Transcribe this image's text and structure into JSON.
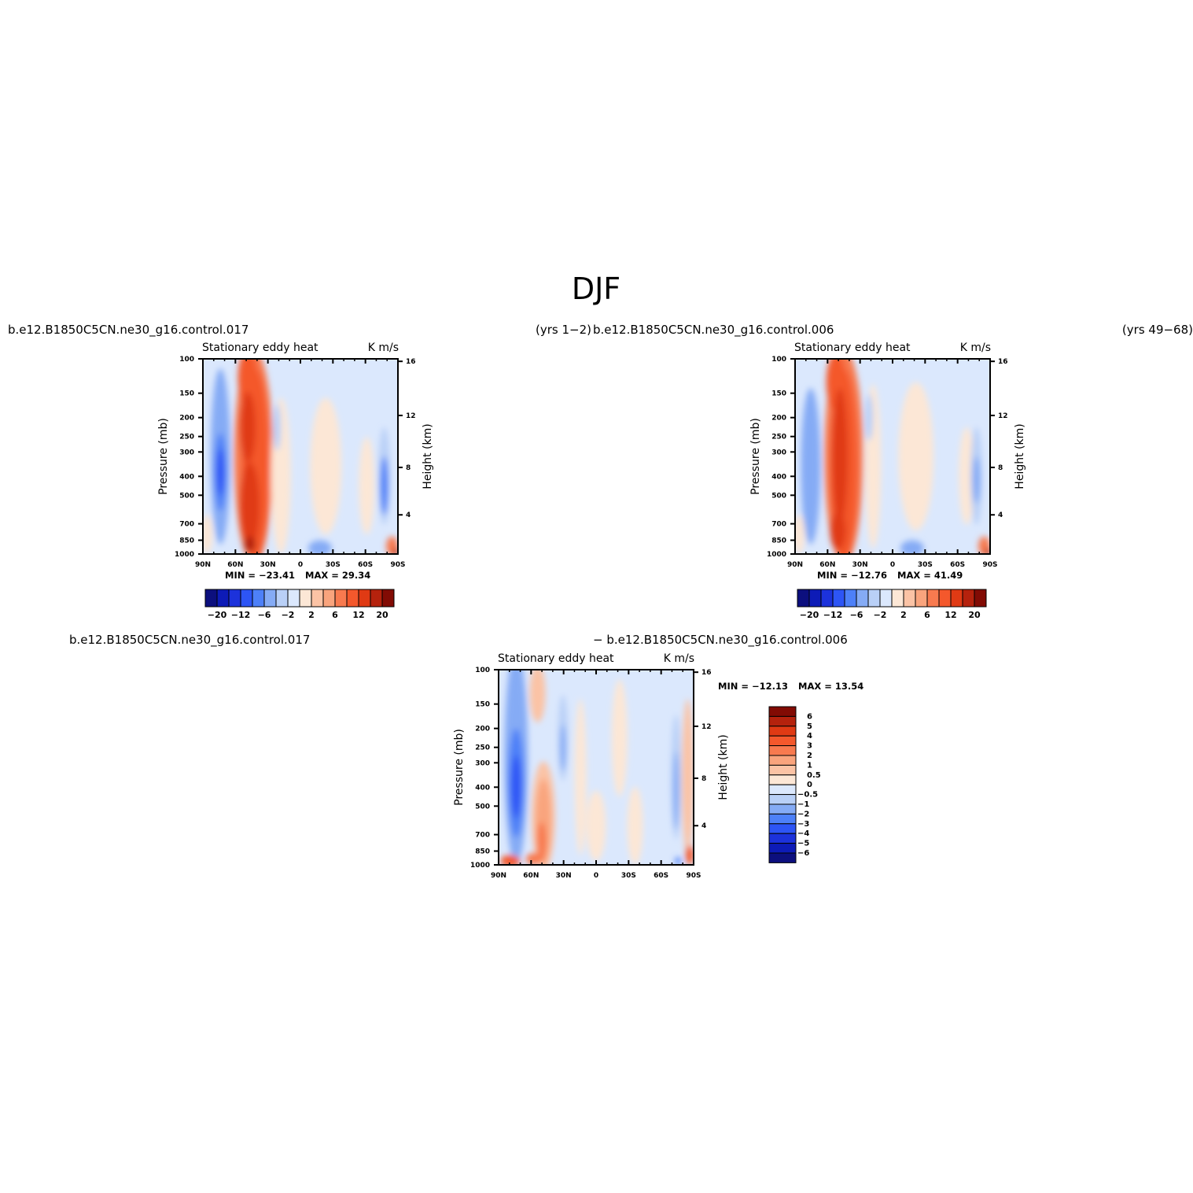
{
  "main_title": "DJF",
  "colors": {
    "levels_diff": [
      "#0c0f7e",
      "#0d1bb7",
      "#1c32db",
      "#2d55f5",
      "#4d80f8",
      "#85abf5",
      "#b9d0f7",
      "#dbe8fd",
      "#fce7d6",
      "#fbc3a5",
      "#f9a47d",
      "#f87a4f",
      "#f4582c",
      "#e03a14",
      "#b5220d",
      "#820b04"
    ]
  },
  "panels": [
    {
      "case_name": "b.e12.B1850C5CN.ne30_g16.control.017",
      "years": "(yrs 1−2)",
      "left_string": "Stationary  eddy  heat",
      "right_string": "K  m/s",
      "min_label": "MIN  =  −23.41",
      "max_label": "MAX  =   29.34",
      "ylabel_left": "Pressure  (mb)",
      "ylabel_right": "Height  (km)",
      "colorbar_labels": [
        "−20",
        "−12",
        "−6",
        "−2",
        "2",
        "6",
        "12",
        "20"
      ]
    },
    {
      "case_name": "b.e12.B1850C5CN.ne30_g16.control.006",
      "years": "(yrs 49−68)",
      "left_string": "Stationary  eddy  heat",
      "right_string": "K  m/s",
      "min_label": "MIN  =  −12.76",
      "max_label": "MAX  =   41.49",
      "ylabel_left": "Pressure  (mb)",
      "ylabel_right": "Height  (km)",
      "colorbar_labels": [
        "−20",
        "−12",
        "−6",
        "−2",
        "2",
        "6",
        "12",
        "20"
      ]
    },
    {
      "case_name_left": "b.e12.B1850C5CN.ne30_g16.control.017",
      "case_name_right": "−  b.e12.B1850C5CN.ne30_g16.control.006",
      "left_string": "Stationary  eddy  heat",
      "right_string": "K  m/s",
      "min_label": "MIN  =  −12.13",
      "max_label": "MAX  =   13.54",
      "ylabel_left": "Pressure  (mb)",
      "ylabel_right": "Height  (km)",
      "colorbar_labels": [
        "6",
        "5",
        "4",
        "3",
        "2",
        "1",
        "0.5",
        "0",
        "−0.5",
        "−1",
        "−2",
        "−3",
        "−4",
        "−5",
        "−6"
      ]
    }
  ],
  "chart_data": [
    {
      "type": "heatmap",
      "title": "Stationary  eddy  heat",
      "units": "K  m/s",
      "case": "b.e12.B1850C5CN.ne30_g16.control.017 (yrs 1−2)",
      "x_ticks": [
        "90N",
        "60N",
        "30N",
        "0",
        "30S",
        "60S",
        "90S"
      ],
      "y_ticks_left": [
        "100",
        "150",
        "200",
        "250",
        "300",
        "400",
        "500",
        "700",
        "850",
        "1000"
      ],
      "y_ticks_right": [
        "16",
        "12",
        "8",
        "4"
      ],
      "ylabel": "Pressure  (mb)",
      "ylabel_right": "Height  (km)",
      "ylim": [
        1000,
        100
      ],
      "min": -23.41,
      "max": 29.34,
      "contour_levels": [
        -20,
        -16,
        -12,
        -9,
        -6,
        -4,
        -2,
        -1,
        1,
        2,
        4,
        6,
        9,
        12,
        16,
        20
      ]
    },
    {
      "type": "heatmap",
      "title": "Stationary  eddy  heat",
      "units": "K  m/s",
      "case": "b.e12.B1850C5CN.ne30_g16.control.006 (yrs 49−68)",
      "x_ticks": [
        "90N",
        "60N",
        "30N",
        "0",
        "30S",
        "60S",
        "90S"
      ],
      "y_ticks_left": [
        "100",
        "150",
        "200",
        "250",
        "300",
        "400",
        "500",
        "700",
        "850",
        "1000"
      ],
      "y_ticks_right": [
        "16",
        "12",
        "8",
        "4"
      ],
      "ylabel": "Pressure  (mb)",
      "ylabel_right": "Height  (km)",
      "ylim": [
        1000,
        100
      ],
      "min": -12.76,
      "max": 41.49,
      "contour_levels": [
        -20,
        -16,
        -12,
        -9,
        -6,
        -4,
        -2,
        -1,
        1,
        2,
        4,
        6,
        9,
        12,
        16,
        20
      ]
    },
    {
      "type": "heatmap",
      "title": "Stationary  eddy  heat",
      "units": "K  m/s",
      "case": "b.e12.B1850C5CN.ne30_g16.control.017 − b.e12.B1850C5CN.ne30_g16.control.006",
      "x_ticks": [
        "90N",
        "60N",
        "30N",
        "0",
        "30S",
        "60S",
        "90S"
      ],
      "y_ticks_left": [
        "100",
        "150",
        "200",
        "250",
        "300",
        "400",
        "500",
        "700",
        "850",
        "1000"
      ],
      "y_ticks_right": [
        "16",
        "12",
        "8",
        "4"
      ],
      "ylabel": "Pressure  (mb)",
      "ylabel_right": "Height  (km)",
      "ylim": [
        1000,
        100
      ],
      "min": -12.13,
      "max": 13.54,
      "contour_levels": [
        -6,
        -5,
        -4,
        -3,
        -2,
        -1,
        -0.5,
        0,
        0.5,
        1,
        2,
        3,
        4,
        5,
        6
      ]
    }
  ]
}
